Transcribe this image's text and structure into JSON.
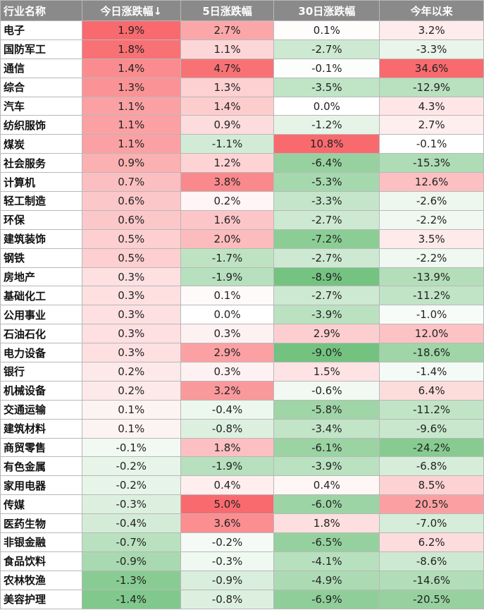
{
  "colors": {
    "positive": "#f86a6e",
    "negative": "#5cb86a",
    "neutral": "#ffffff",
    "header_bg": "#8a8a8a"
  },
  "chart_data": {
    "type": "table",
    "columns": [
      "行业名称",
      "今日涨跌幅↓",
      "5日涨跌幅",
      "30日涨跌幅",
      "今年以来"
    ],
    "rows": [
      [
        "电子",
        "1.9%",
        "2.7%",
        "0.1%",
        "3.2%"
      ],
      [
        "国防军工",
        "1.8%",
        "1.1%",
        "-2.7%",
        "-3.3%"
      ],
      [
        "通信",
        "1.4%",
        "4.7%",
        "-0.1%",
        "34.6%"
      ],
      [
        "综合",
        "1.3%",
        "1.3%",
        "-3.5%",
        "-12.9%"
      ],
      [
        "汽车",
        "1.1%",
        "1.4%",
        "0.0%",
        "4.3%"
      ],
      [
        "纺织服饰",
        "1.1%",
        "0.9%",
        "-1.2%",
        "2.7%"
      ],
      [
        "煤炭",
        "1.1%",
        "-1.1%",
        "10.8%",
        "-0.1%"
      ],
      [
        "社会服务",
        "0.9%",
        "1.2%",
        "-6.4%",
        "-15.3%"
      ],
      [
        "计算机",
        "0.7%",
        "3.8%",
        "-5.3%",
        "12.6%"
      ],
      [
        "轻工制造",
        "0.6%",
        "0.2%",
        "-3.3%",
        "-2.6%"
      ],
      [
        "环保",
        "0.6%",
        "1.6%",
        "-2.7%",
        "-2.2%"
      ],
      [
        "建筑装饰",
        "0.5%",
        "2.0%",
        "-7.2%",
        "3.5%"
      ],
      [
        "钢铁",
        "0.5%",
        "-1.7%",
        "-2.7%",
        "-2.2%"
      ],
      [
        "房地产",
        "0.3%",
        "-1.9%",
        "-8.9%",
        "-13.9%"
      ],
      [
        "基础化工",
        "0.3%",
        "0.1%",
        "-2.7%",
        "-11.2%"
      ],
      [
        "公用事业",
        "0.3%",
        "0.0%",
        "-3.9%",
        "-1.0%"
      ],
      [
        "石油石化",
        "0.3%",
        "0.3%",
        "2.9%",
        "12.0%"
      ],
      [
        "电力设备",
        "0.3%",
        "2.9%",
        "-9.0%",
        "-18.6%"
      ],
      [
        "银行",
        "0.2%",
        "0.3%",
        "1.5%",
        "-1.4%"
      ],
      [
        "机械设备",
        "0.2%",
        "3.2%",
        "-0.6%",
        "6.4%"
      ],
      [
        "交通运输",
        "0.1%",
        "-0.4%",
        "-5.8%",
        "-11.2%"
      ],
      [
        "建筑材料",
        "0.1%",
        "-0.8%",
        "-3.4%",
        "-9.6%"
      ],
      [
        "商贸零售",
        "-0.1%",
        "1.8%",
        "-6.1%",
        "-24.2%"
      ],
      [
        "有色金属",
        "-0.2%",
        "-1.9%",
        "-3.9%",
        "-6.8%"
      ],
      [
        "家用电器",
        "-0.2%",
        "0.4%",
        "0.4%",
        "8.5%"
      ],
      [
        "传媒",
        "-0.3%",
        "5.0%",
        "-6.0%",
        "20.5%"
      ],
      [
        "医药生物",
        "-0.4%",
        "3.6%",
        "1.8%",
        "-7.0%"
      ],
      [
        "非银金融",
        "-0.7%",
        "-0.2%",
        "-6.5%",
        "6.2%"
      ],
      [
        "食品饮料",
        "-0.9%",
        "-0.3%",
        "-4.1%",
        "-8.6%"
      ],
      [
        "农林牧渔",
        "-1.3%",
        "-0.9%",
        "-4.9%",
        "-14.6%"
      ],
      [
        "美容护理",
        "-1.4%",
        "-0.8%",
        "-6.9%",
        "-20.5%"
      ]
    ]
  }
}
